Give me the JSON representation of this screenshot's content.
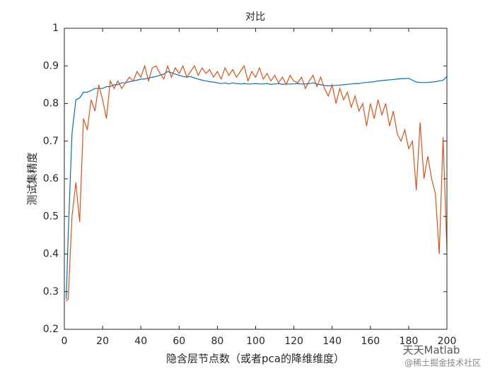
{
  "chart_data": {
    "type": "line",
    "title": "对比",
    "xlabel": "隐含层节点数（或者pca的降维维度）",
    "ylabel": "测试集精度",
    "x": [
      1,
      2,
      4,
      6,
      8,
      10,
      12,
      14,
      16,
      18,
      20,
      22,
      24,
      26,
      28,
      30,
      32,
      34,
      36,
      38,
      40,
      42,
      44,
      46,
      48,
      50,
      52,
      54,
      56,
      58,
      60,
      62,
      64,
      66,
      68,
      70,
      72,
      74,
      76,
      78,
      80,
      82,
      84,
      86,
      88,
      90,
      92,
      94,
      96,
      98,
      100,
      102,
      104,
      106,
      108,
      110,
      112,
      114,
      116,
      118,
      120,
      122,
      124,
      126,
      128,
      130,
      132,
      134,
      136,
      138,
      140,
      142,
      144,
      146,
      148,
      150,
      152,
      154,
      156,
      158,
      160,
      162,
      164,
      166,
      168,
      170,
      172,
      174,
      176,
      178,
      180,
      182,
      184,
      186,
      188,
      190,
      192,
      194,
      196,
      198,
      200
    ],
    "series": [
      {
        "color": "#0072bd",
        "values": [
          0.28,
          0.45,
          0.72,
          0.81,
          0.815,
          0.83,
          0.83,
          0.835,
          0.84,
          0.84,
          0.84,
          0.845,
          0.845,
          0.85,
          0.85,
          0.855,
          0.855,
          0.858,
          0.86,
          0.862,
          0.865,
          0.865,
          0.868,
          0.87,
          0.872,
          0.875,
          0.878,
          0.885,
          0.882,
          0.878,
          0.875,
          0.872,
          0.87,
          0.872,
          0.868,
          0.865,
          0.862,
          0.86,
          0.858,
          0.857,
          0.855,
          0.853,
          0.855,
          0.852,
          0.855,
          0.853,
          0.852,
          0.853,
          0.852,
          0.852,
          0.853,
          0.852,
          0.852,
          0.853,
          0.851,
          0.852,
          0.853,
          0.851,
          0.852,
          0.852,
          0.852,
          0.853,
          0.852,
          0.852,
          0.853,
          0.855,
          0.852,
          0.85,
          0.848,
          0.847,
          0.848,
          0.848,
          0.849,
          0.85,
          0.851,
          0.852,
          0.853,
          0.853,
          0.855,
          0.856,
          0.857,
          0.858,
          0.86,
          0.861,
          0.862,
          0.863,
          0.864,
          0.865,
          0.866,
          0.866,
          0.867,
          0.862,
          0.857,
          0.856,
          0.856,
          0.856,
          0.857,
          0.858,
          0.86,
          0.862,
          0.872
        ]
      },
      {
        "color": "#d95319",
        "values": [
          0.275,
          0.28,
          0.5,
          0.59,
          0.485,
          0.76,
          0.73,
          0.81,
          0.78,
          0.85,
          0.81,
          0.76,
          0.86,
          0.84,
          0.86,
          0.84,
          0.855,
          0.87,
          0.86,
          0.885,
          0.87,
          0.9,
          0.86,
          0.895,
          0.9,
          0.88,
          0.865,
          0.9,
          0.87,
          0.895,
          0.88,
          0.9,
          0.87,
          0.885,
          0.9,
          0.875,
          0.895,
          0.88,
          0.89,
          0.87,
          0.885,
          0.865,
          0.895,
          0.875,
          0.89,
          0.87,
          0.885,
          0.9,
          0.86,
          0.885,
          0.87,
          0.895,
          0.865,
          0.88,
          0.86,
          0.875,
          0.855,
          0.87,
          0.85,
          0.875,
          0.86,
          0.855,
          0.87,
          0.84,
          0.86,
          0.875,
          0.845,
          0.87,
          0.84,
          0.82,
          0.85,
          0.8,
          0.84,
          0.81,
          0.83,
          0.79,
          0.82,
          0.78,
          0.8,
          0.74,
          0.8,
          0.76,
          0.81,
          0.77,
          0.8,
          0.74,
          0.78,
          0.72,
          0.7,
          0.73,
          0.68,
          0.7,
          0.57,
          0.75,
          0.6,
          0.66,
          0.6,
          0.56,
          0.4,
          0.71,
          0.41
        ]
      }
    ],
    "xlim": [
      0,
      200
    ],
    "xticks": [
      0,
      20,
      40,
      60,
      80,
      100,
      120,
      140,
      160,
      180,
      200
    ],
    "ylim": [
      0.2,
      1
    ],
    "yticks": [
      0.2,
      0.3,
      0.4,
      0.5,
      0.6,
      0.7,
      0.8,
      0.9,
      1
    ]
  },
  "watermark": {
    "line1": "天天Matlab",
    "line2": "@稀土掘金技术社区"
  }
}
